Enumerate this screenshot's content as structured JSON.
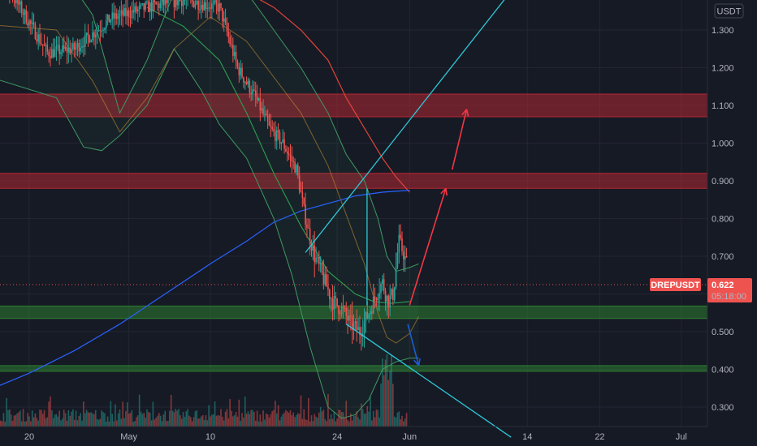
{
  "chart_data": {
    "type": "candlestick",
    "symbol": "DREPUSDT",
    "quote_currency": "USDT",
    "last_price": "0.622",
    "countdown": "05:18:00",
    "y_ticks": [
      "1.300",
      "1.200",
      "1.100",
      "1.000",
      "0.900",
      "0.800",
      "0.700",
      "0.600",
      "0.500",
      "0.400",
      "0.300"
    ],
    "x_ticks": [
      {
        "label": "20",
        "day": 0
      },
      {
        "label": "May",
        "day": 11
      },
      {
        "label": "10",
        "day": 20
      },
      {
        "label": "24",
        "day": 34
      },
      {
        "label": "Jun",
        "day": 42
      },
      {
        "label": "14",
        "day": 55
      },
      {
        "label": "22",
        "day": 63
      },
      {
        "label": "Jul",
        "day": 72
      }
    ],
    "ylim": [
      0.24,
      1.37
    ],
    "zones": [
      {
        "low": 1.07,
        "high": 1.13,
        "color": "#b22833"
      },
      {
        "low": 0.88,
        "high": 0.92,
        "color": "#b22833"
      },
      {
        "low": 0.535,
        "high": 0.568,
        "color": "#2e7d32"
      },
      {
        "low": 0.395,
        "high": 0.41,
        "color": "#2e7d32"
      }
    ],
    "colors": {
      "up": "#26a69a",
      "down": "#ef5350",
      "background": "#161a25",
      "grid": "#232632",
      "band": "#3f9a62",
      "ma_red": "#e0453a",
      "ma_blue": "#2962ff",
      "trend": "#2ec8d8",
      "arrow_up": "#f23645",
      "arrow_down": "#1e5bd6"
    }
  }
}
